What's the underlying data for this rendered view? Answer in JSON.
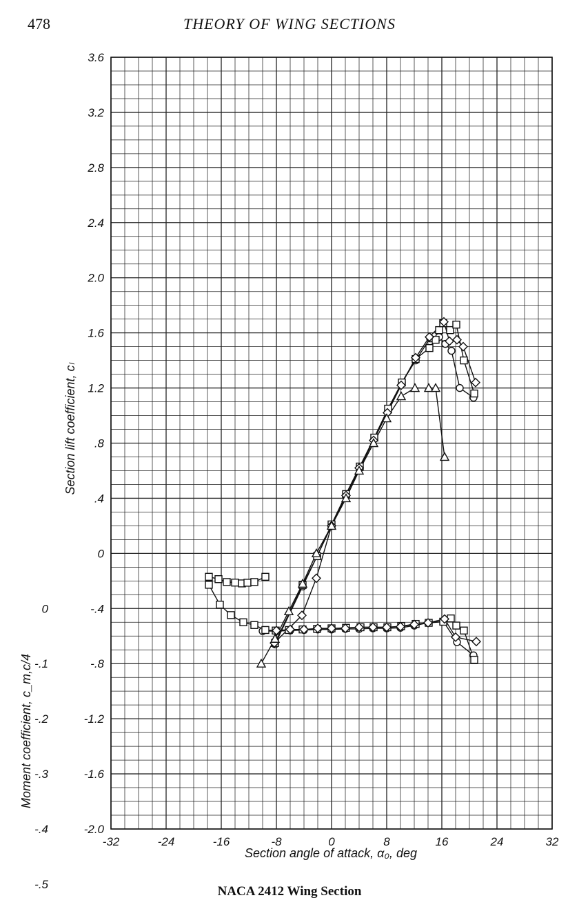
{
  "page": {
    "page_number": "478",
    "running_head": "THEORY OF WING SECTIONS",
    "caption": "NACA 2412 Wing Section"
  },
  "chart_data": {
    "type": "line",
    "title": "NACA 2412 Wing Section",
    "xlabel": "Section angle of attack, α₀, deg",
    "ylabel": "Section lift coefficient, cₗ",
    "y2label": "Moment coefficient, c_m,c/4",
    "xlim": [
      -32,
      32
    ],
    "ylim": [
      -2.0,
      3.6
    ],
    "y2lim": [
      -0.5,
      0.0
    ],
    "grid": true,
    "x_ticks": [
      "-32",
      "-24",
      "-16",
      "-8",
      "0",
      "8",
      "16",
      "24",
      "32"
    ],
    "y_ticks": [
      "-2.0",
      "-1.6",
      "-1.2",
      "-.8",
      "-.4",
      "0",
      ".4",
      ".8",
      "1.2",
      "1.6",
      "2.0",
      "2.4",
      "2.8",
      "3.2",
      "3.6"
    ],
    "y2_ticks": [
      "0",
      "-.1",
      "-.2",
      "-.3",
      "-.4",
      "-.5"
    ],
    "lift_series": [
      {
        "marker": "circle",
        "x": [
          -8.2,
          -4.2,
          -2.1,
          0,
          2.1,
          4.1,
          6.2,
          8.2,
          10.2,
          12.2,
          14.3,
          15.6,
          16.5,
          17.4,
          18.6,
          20.6
        ],
        "y": [
          -0.66,
          -0.24,
          -0.02,
          0.2,
          0.42,
          0.62,
          0.83,
          1.04,
          1.24,
          1.4,
          1.56,
          1.57,
          1.52,
          1.47,
          1.2,
          1.13
        ]
      },
      {
        "marker": "square",
        "x": [
          -8.2,
          -4.2,
          -2.1,
          0,
          2.1,
          4.1,
          6.2,
          8.2,
          10.2,
          12.2,
          14.2,
          15.1,
          15.6,
          16.2,
          17.2,
          18.1,
          19.2,
          20.7
        ],
        "y": [
          -0.65,
          -0.23,
          -0.02,
          0.21,
          0.43,
          0.63,
          0.84,
          1.05,
          1.24,
          1.41,
          1.49,
          1.55,
          1.62,
          1.67,
          1.62,
          1.66,
          1.4,
          1.16
        ]
      },
      {
        "marker": "diamond",
        "x": [
          -8.3,
          -4.3,
          -2.2,
          0,
          2.1,
          4.0,
          6.1,
          8.1,
          10.1,
          12.2,
          14.2,
          16.3,
          17.1,
          18.2,
          19.1,
          20.9
        ],
        "y": [
          -0.65,
          -0.45,
          -0.18,
          0.2,
          0.42,
          0.62,
          0.82,
          1.02,
          1.22,
          1.42,
          1.57,
          1.68,
          1.54,
          1.55,
          1.5,
          1.24
        ]
      },
      {
        "marker": "triangle",
        "x": [
          -10.2,
          -8.2,
          -6.2,
          -4.2,
          -2.2,
          0,
          2.1,
          4.0,
          6.1,
          8.0,
          10.1,
          12.1,
          14.1,
          15.1,
          16.4
        ],
        "y": [
          -0.8,
          -0.62,
          -0.42,
          -0.22,
          0.0,
          0.2,
          0.4,
          0.6,
          0.8,
          0.98,
          1.14,
          1.2,
          1.2,
          1.2,
          0.7
        ]
      }
    ],
    "moment_series": [
      {
        "marker": "circle",
        "x": [
          -10,
          -8,
          -6,
          -4,
          -2,
          0,
          2,
          4,
          6,
          8,
          10,
          12,
          14,
          16.2,
          18.2,
          20.6
        ],
        "y": [
          -0.041,
          -0.041,
          -0.04,
          -0.039,
          -0.038,
          -0.038,
          -0.037,
          -0.037,
          -0.036,
          -0.036,
          -0.035,
          -0.031,
          -0.026,
          -0.023,
          -0.061,
          -0.085
        ]
      },
      {
        "marker": "square",
        "x": [
          -17.8,
          -16.2,
          -14.6,
          -12.8,
          -11.2,
          -9.6,
          -8.1,
          -6.2,
          -4.2,
          -2.1,
          0,
          2.1,
          4.2,
          6.1,
          8.1,
          10.1,
          12.2,
          14.1,
          16.2,
          17.3,
          18.1,
          19.2,
          20.7
        ],
        "y": [
          0.043,
          0.007,
          -0.012,
          -0.025,
          -0.03,
          -0.039,
          -0.04,
          -0.039,
          -0.038,
          -0.037,
          -0.036,
          -0.035,
          -0.034,
          -0.034,
          -0.034,
          -0.032,
          -0.028,
          -0.026,
          -0.024,
          -0.018,
          -0.031,
          -0.04,
          -0.093
        ]
      },
      {
        "marker": "diamond",
        "x": [
          -8,
          -6,
          -4,
          -2,
          0,
          2,
          4,
          6,
          8,
          10,
          12,
          14,
          16.4,
          18,
          21
        ],
        "y": [
          -0.04,
          -0.038,
          -0.038,
          -0.036,
          -0.036,
          -0.036,
          -0.034,
          -0.034,
          -0.034,
          -0.033,
          -0.029,
          -0.026,
          -0.019,
          -0.052,
          -0.06
        ]
      }
    ],
    "moment_low_series": [
      {
        "marker": "square",
        "x": [
          -17.8,
          -16.4,
          -15.2,
          -14.0,
          -13.0,
          -12.2,
          -11.2,
          -9.6
        ],
        "y": [
          -0.17,
          -0.187,
          -0.208,
          -0.212,
          -0.218,
          -0.213,
          -0.208,
          -0.17
        ]
      }
    ]
  }
}
